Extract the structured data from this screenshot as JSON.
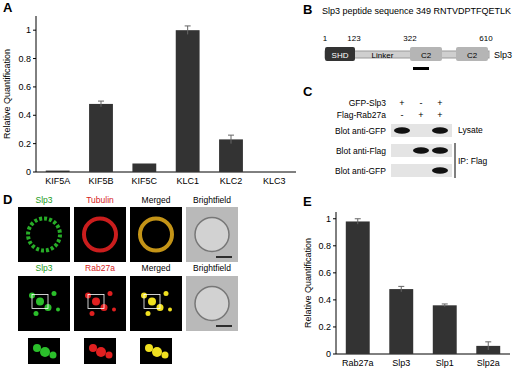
{
  "panel_labels": [
    "A",
    "B",
    "C",
    "D",
    "E"
  ],
  "chart_data": [
    {
      "type": "bar",
      "ylabel": "Relative Quantification",
      "categories": [
        "KIF5A",
        "KIF5B",
        "KIF5C",
        "KLC1",
        "KLC2",
        "KLC3"
      ],
      "values": [
        0.01,
        0.48,
        0.06,
        1.0,
        0.23,
        0.0
      ],
      "errors": [
        0,
        0.02,
        0,
        0.03,
        0.03,
        0
      ],
      "color": "#333333",
      "ylim": [
        0,
        1.1
      ],
      "yticks": [
        0,
        0.2,
        0.4,
        0.6,
        0.8,
        1
      ],
      "grid": false
    },
    {
      "type": "bar",
      "ylabel": "Relative Quantification",
      "categories": [
        "Rab27a",
        "Slp3",
        "Slp1",
        "Slp2a"
      ],
      "values": [
        0.98,
        0.48,
        0.36,
        0.06
      ],
      "errors": [
        0.02,
        0.02,
        0.01,
        0.03
      ],
      "color": "#333333",
      "ylim": [
        0,
        1.05
      ],
      "yticks": [
        0,
        0.2,
        0.4,
        0.6,
        0.8,
        1
      ],
      "grid": false
    }
  ],
  "domain_map": {
    "title": "Slp3 peptide sequence 349 RNTVDPTFQETLK",
    "positions": [
      "1",
      "123",
      "322",
      "610"
    ],
    "domains": [
      "SHD",
      "Linker",
      "C2",
      "C2"
    ],
    "protein": "Slp3"
  },
  "blot": {
    "conditions": [
      {
        "label": "GFP-Slp3",
        "signs": [
          "+",
          "-",
          "+"
        ]
      },
      {
        "label": "Flag-Rab27a",
        "signs": [
          "-",
          "+",
          "+"
        ]
      }
    ],
    "blots": [
      {
        "label": "Blot anti-GFP",
        "bands": [
          true,
          false,
          true
        ]
      },
      {
        "label": "Blot anti-Flag",
        "bands": [
          false,
          true,
          true
        ]
      },
      {
        "label": "Blot anti-GFP",
        "bands": [
          false,
          false,
          true
        ]
      }
    ],
    "lysate_label": "Lysate",
    "ip_label": "IP: Flag"
  },
  "microscopy": {
    "rows": [
      [
        "Slp3",
        "Tubulin",
        "Merged",
        "Brightfield"
      ],
      [
        "Slp3",
        "Rab27a",
        "Merged",
        "Brightfield"
      ]
    ]
  }
}
